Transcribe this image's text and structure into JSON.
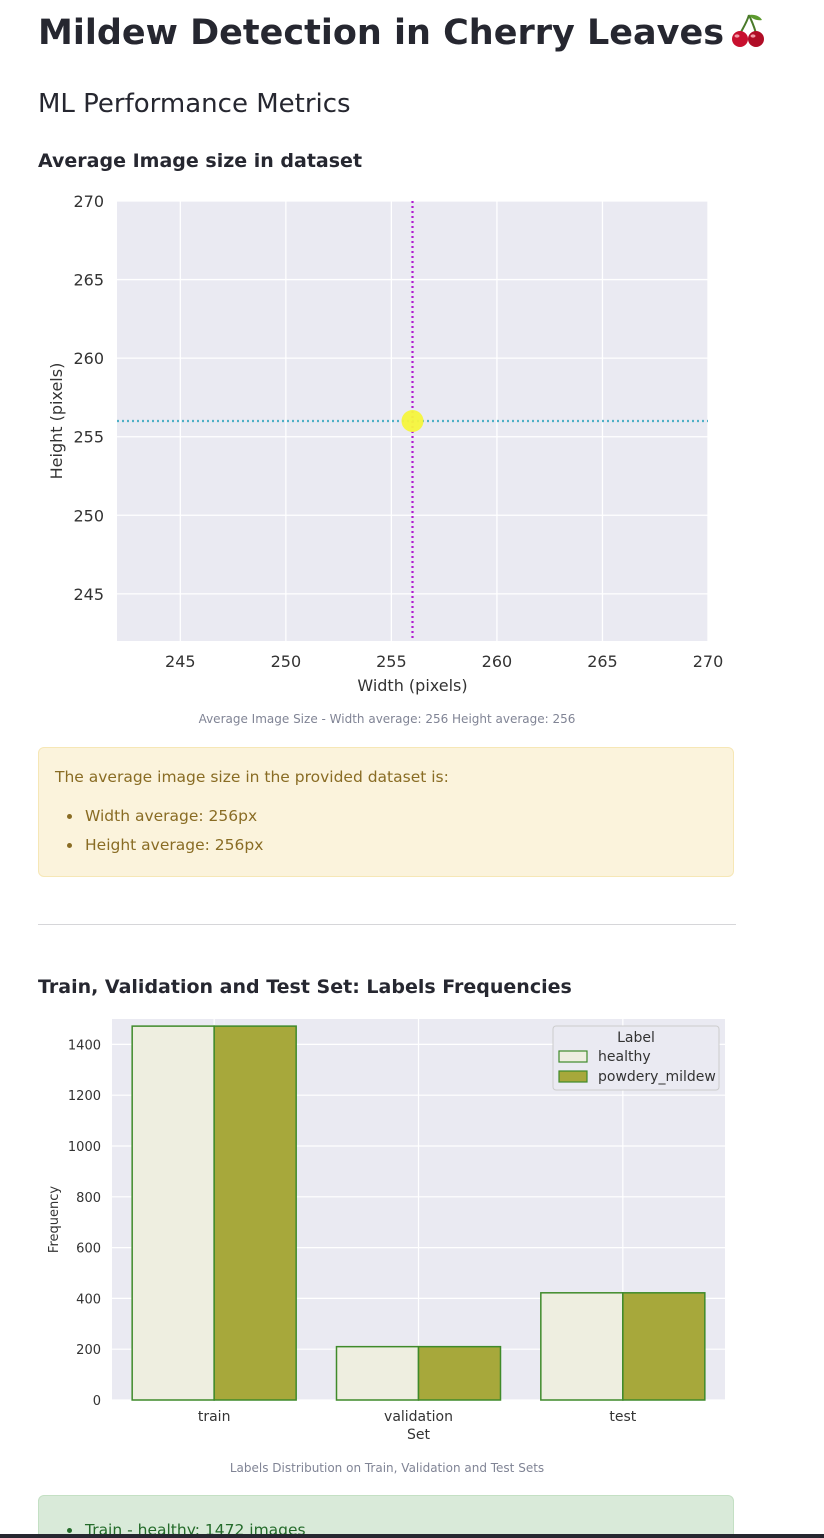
{
  "page": {
    "title": "Mildew Detection in Cherry Leaves",
    "title_icon": "cherry-icon",
    "subtitle": "ML Performance Metrics"
  },
  "image_size_section": {
    "heading": "Average Image size in dataset",
    "caption": "Average Image Size - Width average: 256 Height average: 256",
    "alert": {
      "intro": "The average image size in the provided dataset is:",
      "items": [
        "Width average: 256px",
        "Height average: 256px"
      ]
    }
  },
  "labels_section": {
    "heading": "Train, Validation and Test Set: Labels Frequencies",
    "caption": "Labels Distribution on Train, Validation and Test Sets",
    "summary_items": [
      "Train - healthy: 1472 images"
    ]
  },
  "colors": {
    "plot_background": "#eaeaf2",
    "avg_point": "#f5f53c",
    "width_line": "#b01bd1",
    "height_line": "#4fb0c6",
    "healthy_fill": "#eeeee0",
    "mildew_fill": "#a7a83b",
    "bar_edge": "#3f8a2a",
    "warning_bg": "#fbf3dc",
    "success_bg": "#d9ead9"
  },
  "chart_data": [
    {
      "type": "scatter",
      "title": "",
      "xlabel": "Width (pixels)",
      "ylabel": "Height (pixels)",
      "xlim": [
        242,
        270
      ],
      "ylim": [
        242,
        270
      ],
      "xticks": [
        245,
        250,
        255,
        260,
        265,
        270
      ],
      "yticks": [
        245,
        250,
        255,
        260,
        265,
        270
      ],
      "grid": true,
      "points": [
        {
          "x": 256,
          "y": 256
        }
      ],
      "reference_lines": {
        "vertical_x": 256,
        "horizontal_y": 256,
        "style": "dotted"
      }
    },
    {
      "type": "bar",
      "title": "",
      "xlabel": "Set",
      "ylabel": "Frequency",
      "categories": [
        "train",
        "validation",
        "test"
      ],
      "ylim": [
        0,
        1500
      ],
      "yticks": [
        0,
        200,
        400,
        600,
        800,
        1000,
        1200,
        1400
      ],
      "grid": true,
      "legend_title": "Label",
      "legend_position": "top-right",
      "series": [
        {
          "name": "healthy",
          "values": [
            1472,
            210,
            422
          ]
        },
        {
          "name": "powdery_mildew",
          "values": [
            1472,
            210,
            422
          ]
        }
      ]
    }
  ]
}
